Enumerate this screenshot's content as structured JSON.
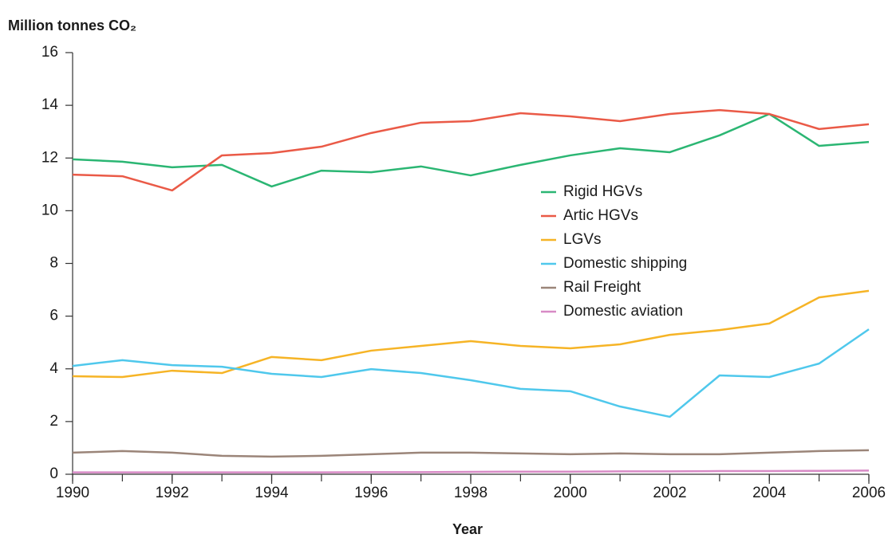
{
  "chart_data": {
    "type": "line",
    "title": "Million tonnes CO₂",
    "x_label": "Year",
    "x": [
      1990,
      1991,
      1992,
      1993,
      1994,
      1995,
      1996,
      1997,
      1998,
      1999,
      2000,
      2001,
      2002,
      2003,
      2004,
      2005,
      2006
    ],
    "xlim": [
      1990,
      2006
    ],
    "xticks": [
      1990,
      1992,
      1994,
      1996,
      1998,
      2000,
      2002,
      2004,
      2006
    ],
    "ylim": [
      0,
      16
    ],
    "yticks": [
      0,
      2,
      4,
      6,
      8,
      10,
      12,
      14,
      16
    ],
    "grid": false,
    "legend": "center",
    "series": [
      {
        "name": "Rigid HGVs",
        "color": "#2bb673",
        "values": [
          11.95,
          11.86,
          11.65,
          11.74,
          10.92,
          11.52,
          11.46,
          11.68,
          11.34,
          11.74,
          12.1,
          12.37,
          12.22,
          12.86,
          13.67,
          12.46,
          12.61
        ]
      },
      {
        "name": "Artic HGVs",
        "color": "#ea5a47",
        "values": [
          11.37,
          11.31,
          10.77,
          12.1,
          12.19,
          12.43,
          12.95,
          13.34,
          13.4,
          13.7,
          13.58,
          13.4,
          13.67,
          13.82,
          13.67,
          13.1,
          13.28
        ]
      },
      {
        "name": "LGVs",
        "color": "#f6b426",
        "values": [
          3.72,
          3.69,
          3.93,
          3.84,
          4.45,
          4.33,
          4.69,
          4.87,
          5.05,
          4.87,
          4.78,
          4.93,
          5.29,
          5.47,
          5.72,
          6.71,
          6.96
        ]
      },
      {
        "name": "Domestic shipping",
        "color": "#4fc8ec",
        "values": [
          4.11,
          4.33,
          4.14,
          4.08,
          3.81,
          3.69,
          3.99,
          3.84,
          3.57,
          3.24,
          3.15,
          2.57,
          2.18,
          3.75,
          3.69,
          4.2,
          5.5
        ]
      },
      {
        "name": "Rail Freight",
        "color": "#9b8579",
        "values": [
          0.82,
          0.88,
          0.82,
          0.7,
          0.67,
          0.7,
          0.76,
          0.82,
          0.82,
          0.79,
          0.76,
          0.79,
          0.76,
          0.76,
          0.82,
          0.88,
          0.91
        ]
      },
      {
        "name": "Domestic aviation",
        "color": "#d88bc6",
        "values": [
          0.07,
          0.07,
          0.07,
          0.07,
          0.07,
          0.07,
          0.08,
          0.08,
          0.09,
          0.1,
          0.1,
          0.11,
          0.11,
          0.12,
          0.12,
          0.13,
          0.14
        ]
      }
    ]
  }
}
